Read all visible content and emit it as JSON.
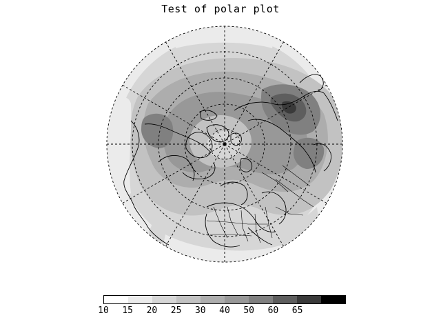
{
  "title": "Test of polar plot",
  "colorbar": {
    "labels": [
      "10",
      "15",
      "20",
      "25",
      "30",
      "40",
      "50",
      "60",
      "65"
    ],
    "colors": [
      "#ffffff",
      "#ebebeb",
      "#d6d6d6",
      "#c2c2c2",
      "#adadad",
      "#989898",
      "#808080",
      "#5e5e5e",
      "#3a3a3a",
      "#000000"
    ]
  },
  "map": {
    "projection": "north-polar-stereographic",
    "background": "#ffffff",
    "field_levels": [
      10,
      15,
      20,
      25,
      30,
      40,
      50,
      60,
      65
    ]
  }
}
